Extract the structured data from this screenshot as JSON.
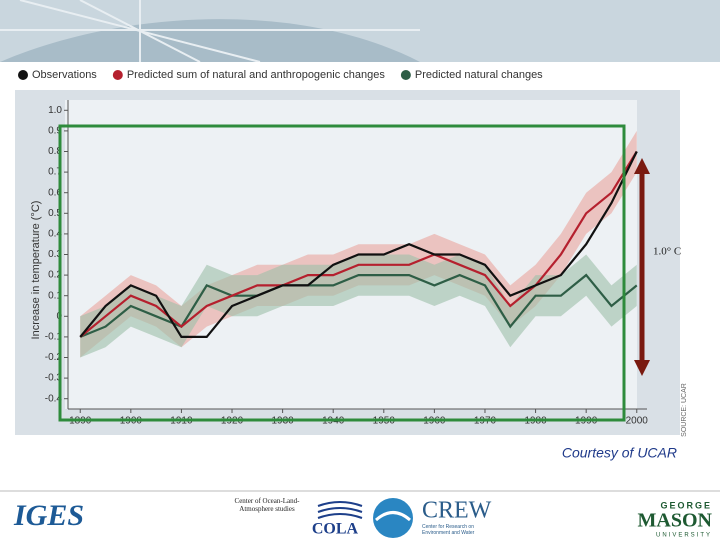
{
  "chart_data": {
    "type": "line",
    "legend": [
      "Observations",
      "Predicted sum of natural and anthropogenic changes",
      "Predicted natural changes"
    ],
    "y_label": "Increase in temperature (°C)",
    "source": "SOURCE: UCAR",
    "annotation": "1.0° C",
    "credit": "Courtesy of UCAR",
    "x": [
      1890,
      1895,
      1900,
      1905,
      1910,
      1915,
      1920,
      1925,
      1930,
      1935,
      1940,
      1945,
      1950,
      1955,
      1960,
      1965,
      1970,
      1975,
      1980,
      1985,
      1990,
      1995,
      2000
    ],
    "series": [
      {
        "name": "Observations",
        "color": "#111111",
        "values": [
          -0.1,
          0.05,
          0.15,
          0.1,
          -0.1,
          -0.1,
          0.05,
          0.1,
          0.15,
          0.15,
          0.25,
          0.3,
          0.3,
          0.35,
          0.3,
          0.3,
          0.25,
          0.1,
          0.15,
          0.2,
          0.35,
          0.55,
          0.8
        ]
      },
      {
        "name": "Predicted sum of natural and anthropogenic changes",
        "color": "#b5202e",
        "band_color": "#e9a59c",
        "values": [
          -0.1,
          0.0,
          0.1,
          0.05,
          -0.05,
          0.05,
          0.1,
          0.15,
          0.15,
          0.2,
          0.2,
          0.25,
          0.25,
          0.25,
          0.3,
          0.25,
          0.2,
          0.05,
          0.15,
          0.3,
          0.5,
          0.6,
          0.8
        ],
        "upper": [
          0,
          0.1,
          0.2,
          0.15,
          0.05,
          0.15,
          0.2,
          0.25,
          0.25,
          0.3,
          0.3,
          0.35,
          0.35,
          0.35,
          0.4,
          0.35,
          0.3,
          0.15,
          0.25,
          0.4,
          0.6,
          0.7,
          0.9
        ],
        "lower": [
          -0.2,
          -0.1,
          0,
          -0.05,
          -0.15,
          -0.05,
          0,
          0.05,
          0.05,
          0.1,
          0.1,
          0.15,
          0.15,
          0.15,
          0.2,
          0.15,
          0.1,
          -0.05,
          0.05,
          0.2,
          0.4,
          0.5,
          0.7
        ]
      },
      {
        "name": "Predicted natural changes",
        "color": "#2e5e46",
        "band_color": "#9dbfa9",
        "values": [
          -0.1,
          -0.05,
          0.05,
          0.0,
          -0.05,
          0.15,
          0.1,
          0.1,
          0.15,
          0.15,
          0.15,
          0.2,
          0.2,
          0.2,
          0.15,
          0.2,
          0.15,
          -0.05,
          0.1,
          0.1,
          0.2,
          0.05,
          0.15
        ],
        "upper": [
          0,
          0.05,
          0.15,
          0.1,
          0.05,
          0.25,
          0.2,
          0.2,
          0.25,
          0.25,
          0.25,
          0.3,
          0.3,
          0.3,
          0.25,
          0.3,
          0.25,
          0.05,
          0.2,
          0.2,
          0.3,
          0.15,
          0.25
        ],
        "lower": [
          -0.2,
          -0.15,
          -0.05,
          -0.1,
          -0.15,
          0.05,
          0,
          0,
          0.05,
          0.05,
          0.05,
          0.1,
          0.1,
          0.1,
          0.05,
          0.1,
          0.05,
          -0.15,
          0,
          0,
          0.1,
          -0.05,
          0.05
        ]
      }
    ],
    "xlim": [
      1886,
      2004
    ],
    "xticks": [
      1890,
      1900,
      1910,
      1920,
      1930,
      1940,
      1950,
      1960,
      1970,
      1980,
      1990,
      2000
    ],
    "ylim": [
      -0.45,
      1.05
    ],
    "yticks": [
      {
        "value": 1,
        "label": "1.0"
      },
      0.9,
      0.8,
      0.7,
      0.6,
      0.5,
      0.4,
      0.3,
      0.2,
      0.1,
      0,
      -0.1,
      -0.2,
      -0.3,
      -0.4
    ]
  },
  "footer": {
    "iges": "IGES",
    "cola_caption": "Center of Ocean-Land-Atmosphere studies",
    "cola": "COLA",
    "crew": "CREW",
    "crew_caption": "Center for Research on Environment and Water",
    "gmu_top": "GEORGE",
    "gmu": "MASON",
    "gmu_bottom": "UNIVERSITY"
  }
}
